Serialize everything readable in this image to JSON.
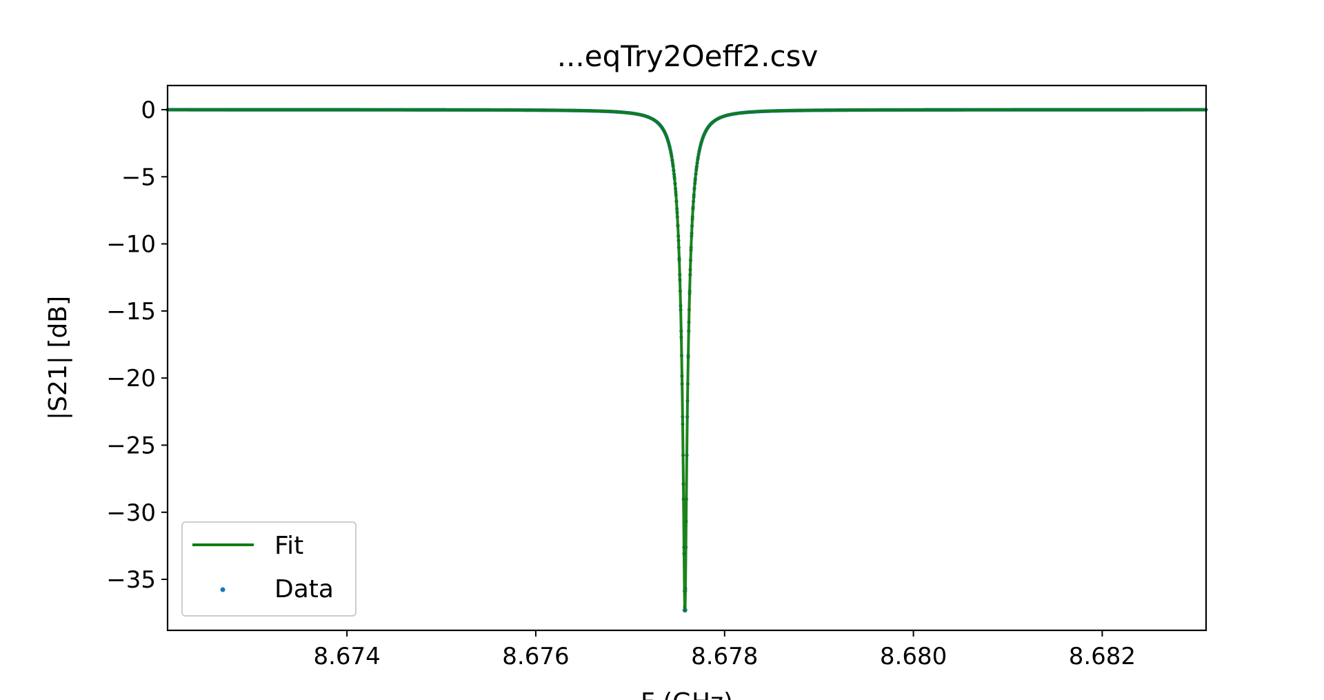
{
  "chart_data": {
    "type": "line",
    "title": "...eqTry2Oeff2.csv",
    "xlabel": "F (GHz)",
    "ylabel": "|S21| [dB]",
    "xlim": [
      8.6721,
      8.6831
    ],
    "ylim": [
      -38.8,
      1.8
    ],
    "xticks": [
      8.674,
      8.676,
      8.678,
      8.68,
      8.682
    ],
    "xtick_labels": [
      "8.674",
      "8.676",
      "8.678",
      "8.680",
      "8.682"
    ],
    "yticks": [
      0,
      -5,
      -10,
      -15,
      -20,
      -25,
      -30,
      -35
    ],
    "ytick_labels": [
      "0",
      "−5",
      "−10",
      "−15",
      "−20",
      "−25",
      "−30",
      "−35"
    ],
    "grid": false,
    "legend_position": "lower-left",
    "resonance": {
      "f0": 8.67758,
      "min_db": -37.3,
      "half_width_ghz": 0.0001
    },
    "series": [
      {
        "name": "Fit",
        "kind": "line",
        "color": "#107c10",
        "x": [
          8.6721,
          8.674,
          8.6755,
          8.6765,
          8.677,
          8.6772,
          8.6773,
          8.6774,
          8.67745,
          8.6775,
          8.67753,
          8.67756,
          8.67758,
          8.6776,
          8.67763,
          8.67766,
          8.6777,
          8.6778,
          8.6779,
          8.678,
          8.6782,
          8.6785,
          8.679,
          8.68,
          8.6815,
          8.6831
        ],
        "y": [
          0,
          0,
          -0.1,
          -0.4,
          -1.3,
          -2.7,
          -4.2,
          -7.3,
          -10.1,
          -15.5,
          -21.0,
          -30.0,
          -37.3,
          -31.5,
          -22.0,
          -16.5,
          -11.7,
          -5.7,
          -3.1,
          -1.9,
          -1.0,
          -0.5,
          -0.2,
          0,
          0,
          0
        ]
      },
      {
        "name": "Data",
        "kind": "scatter",
        "color": "#1f77b4",
        "x": [
          8.6721,
          8.674,
          8.6755,
          8.6765,
          8.677,
          8.6772,
          8.6773,
          8.6774,
          8.67745,
          8.6775,
          8.67753,
          8.67756,
          8.67758,
          8.6776,
          8.67763,
          8.67766,
          8.6777,
          8.6778,
          8.6779,
          8.678,
          8.6782,
          8.6785,
          8.679,
          8.68,
          8.6815,
          8.6831
        ],
        "y": [
          0,
          0,
          -0.1,
          -0.4,
          -1.3,
          -2.7,
          -4.2,
          -7.3,
          -10.1,
          -15.5,
          -21.0,
          -30.0,
          -37.3,
          -31.5,
          -22.0,
          -16.5,
          -11.7,
          -5.7,
          -3.1,
          -1.9,
          -1.0,
          -0.5,
          -0.2,
          0,
          0,
          0
        ]
      }
    ]
  }
}
